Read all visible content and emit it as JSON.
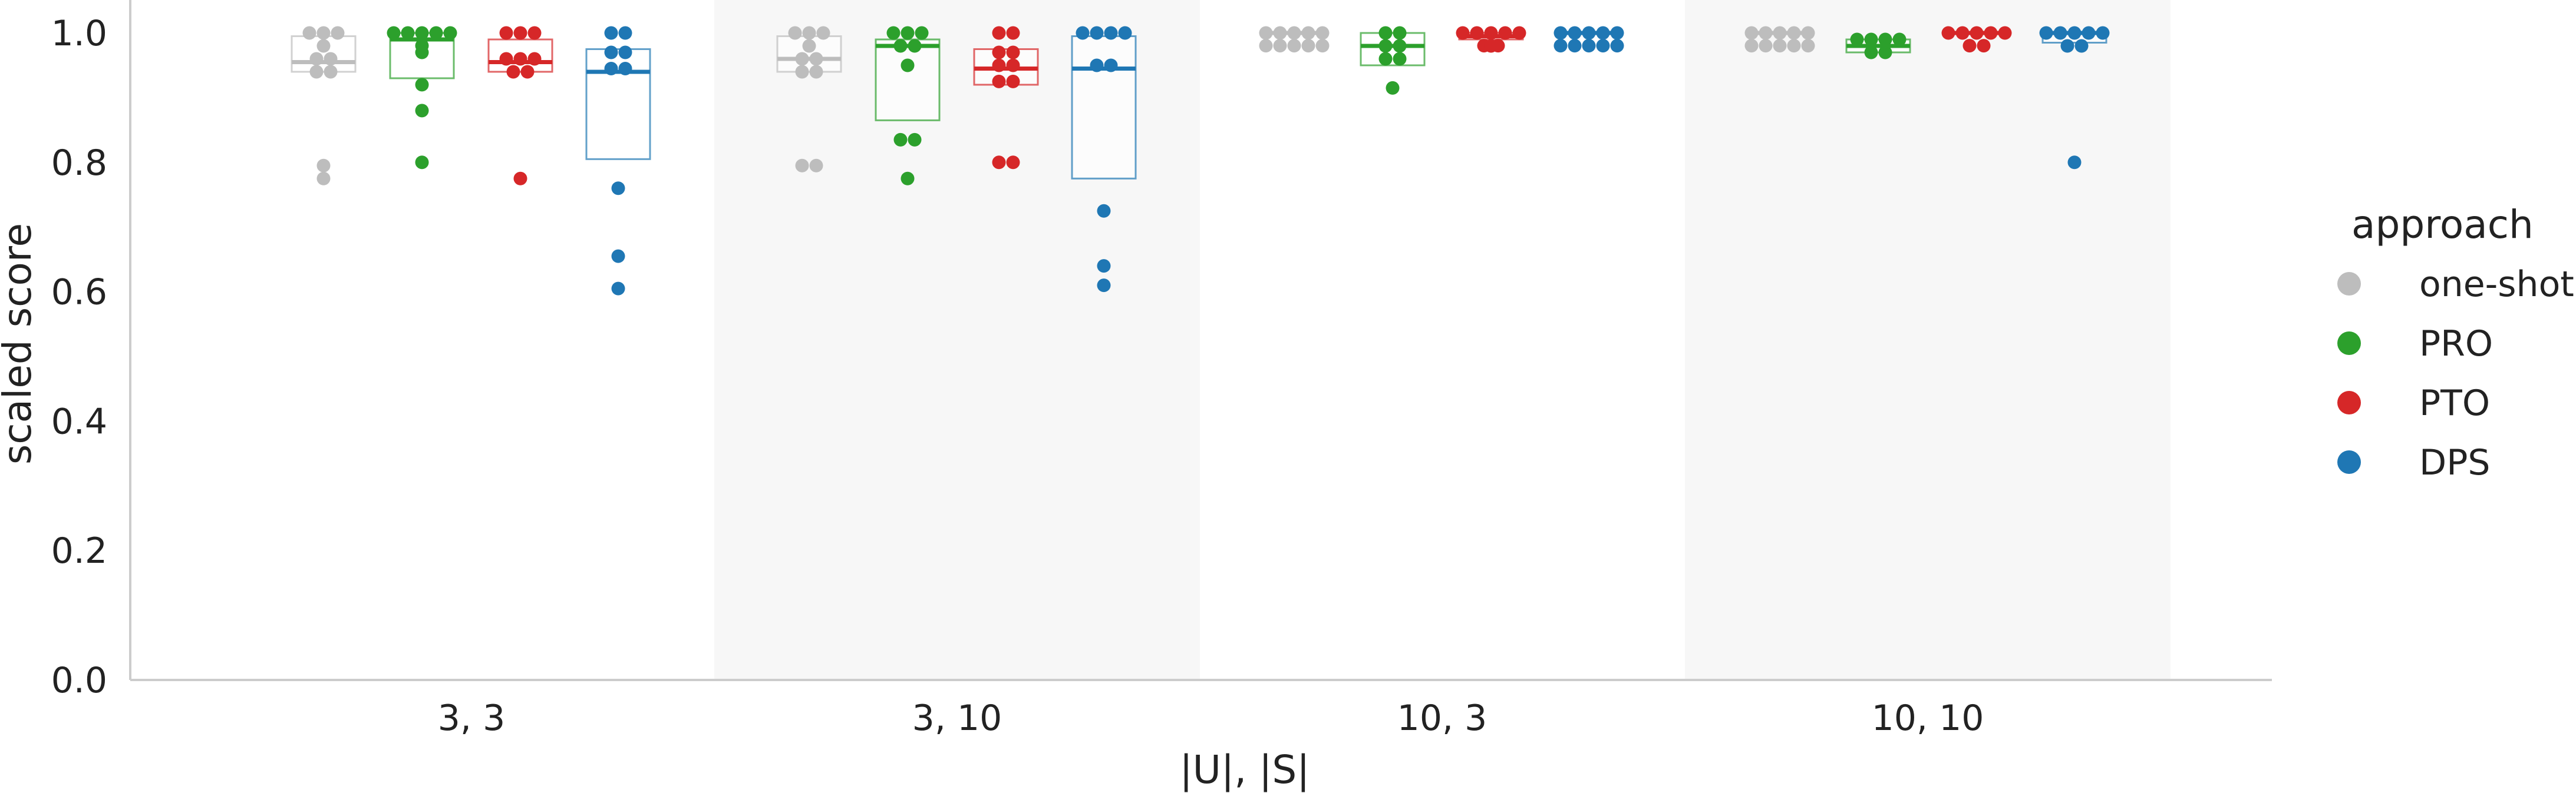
{
  "chart_data": {
    "type": "box-swarm",
    "title": "",
    "xlabel": "|U|, |S|",
    "ylabel": "scaled score",
    "ylim": [
      0.0,
      1.04
    ],
    "yticks": [
      "0.0",
      "0.2",
      "0.4",
      "0.6",
      "0.8",
      "1.0"
    ],
    "categories": [
      "3, 3",
      "3, 10",
      "10, 3",
      "10, 10"
    ],
    "shaded_groups": [
      1,
      3
    ],
    "grid": false,
    "legend": {
      "title": "approach",
      "placement": "right",
      "entries": [
        "one-shot",
        "PRO",
        "PTO",
        "DPS"
      ]
    },
    "colors": {
      "one-shot": "#bdbdbd",
      "PRO": "#2ca02c",
      "PTO": "#d62728",
      "DPS": "#1f77b4",
      "band": "#f7f7f7",
      "axis": "#cccccc"
    },
    "series": [
      {
        "name": "one-shot",
        "boxes": [
          {
            "q1": 0.94,
            "median": 0.955,
            "q3": 0.995
          },
          {
            "q1": 0.94,
            "median": 0.96,
            "q3": 0.995
          },
          {
            "q1": 1.0,
            "median": 1.0,
            "q3": 1.0
          },
          {
            "q1": 1.0,
            "median": 1.0,
            "q3": 1.0
          }
        ],
        "points": [
          [
            1.0,
            1.0,
            1.0,
            0.98,
            0.96,
            0.95,
            0.94,
            0.94,
            0.795,
            0.775
          ],
          [
            1.0,
            1.0,
            1.0,
            0.98,
            0.96,
            0.95,
            0.94,
            0.94,
            0.795,
            0.79
          ],
          [
            1.0,
            1.0,
            1.0,
            1.0,
            1.0,
            1.0,
            1.0,
            1.0,
            1.0,
            0.99
          ],
          [
            1.0,
            1.0,
            1.0,
            1.0,
            1.0,
            1.0,
            1.0,
            1.0,
            1.0,
            1.0
          ]
        ]
      },
      {
        "name": "PRO",
        "boxes": [
          {
            "q1": 0.93,
            "median": 0.99,
            "q3": 1.0
          },
          {
            "q1": 0.865,
            "median": 0.98,
            "q3": 0.99
          },
          {
            "q1": 0.95,
            "median": 0.98,
            "q3": 1.0
          },
          {
            "q1": 0.97,
            "median": 0.98,
            "q3": 0.99
          }
        ],
        "points": [
          [
            1.0,
            1.0,
            1.0,
            1.0,
            1.0,
            1.0,
            0.97,
            0.92,
            0.88,
            0.8
          ],
          [
            1.0,
            1.0,
            0.99,
            0.98,
            0.975,
            0.95,
            0.835,
            0.825,
            0.775
          ],
          [
            1.0,
            1.0,
            0.98,
            0.975,
            0.96,
            0.95,
            0.915
          ],
          [
            0.99,
            0.985,
            0.98,
            0.975,
            0.97,
            0.96
          ]
        ]
      },
      {
        "name": "PTO",
        "boxes": [
          {
            "q1": 0.94,
            "median": 0.955,
            "q3": 0.99
          },
          {
            "q1": 0.92,
            "median": 0.945,
            "q3": 0.975
          },
          {
            "q1": 0.99,
            "median": 0.995,
            "q3": 1.0
          },
          {
            "q1": 1.0,
            "median": 1.0,
            "q3": 1.0
          }
        ],
        "points": [
          [
            1.0,
            1.0,
            1.0,
            0.96,
            0.95,
            0.945,
            0.94,
            0.935,
            0.775
          ],
          [
            1.0,
            1.0,
            0.97,
            0.955,
            0.95,
            0.945,
            0.925,
            0.92,
            0.8,
            0.785
          ],
          [
            1.0,
            1.0,
            1.0,
            0.995,
            0.99,
            0.99,
            0.985,
            0.98
          ],
          [
            1.0,
            1.0,
            1.0,
            1.0,
            1.0,
            0.995,
            0.99
          ]
        ]
      },
      {
        "name": "DPS",
        "boxes": [
          {
            "q1": 0.805,
            "median": 0.94,
            "q3": 0.975
          },
          {
            "q1": 0.775,
            "median": 0.945,
            "q3": 0.995
          },
          {
            "q1": 1.0,
            "median": 1.0,
            "q3": 1.0
          },
          {
            "q1": 0.985,
            "median": 1.0,
            "q3": 1.0
          }
        ],
        "points": [
          [
            1.0,
            1.0,
            0.97,
            0.96,
            0.945,
            0.94,
            0.76,
            0.655,
            0.605
          ],
          [
            1.0,
            1.0,
            1.0,
            0.985,
            0.95,
            0.935,
            0.725,
            0.64,
            0.61
          ],
          [
            1.0,
            1.0,
            1.0,
            1.0,
            1.0,
            1.0,
            1.0,
            1.0,
            1.0,
            1.0
          ],
          [
            1.0,
            1.0,
            1.0,
            1.0,
            1.0,
            0.98,
            0.97,
            0.8
          ]
        ]
      }
    ]
  }
}
